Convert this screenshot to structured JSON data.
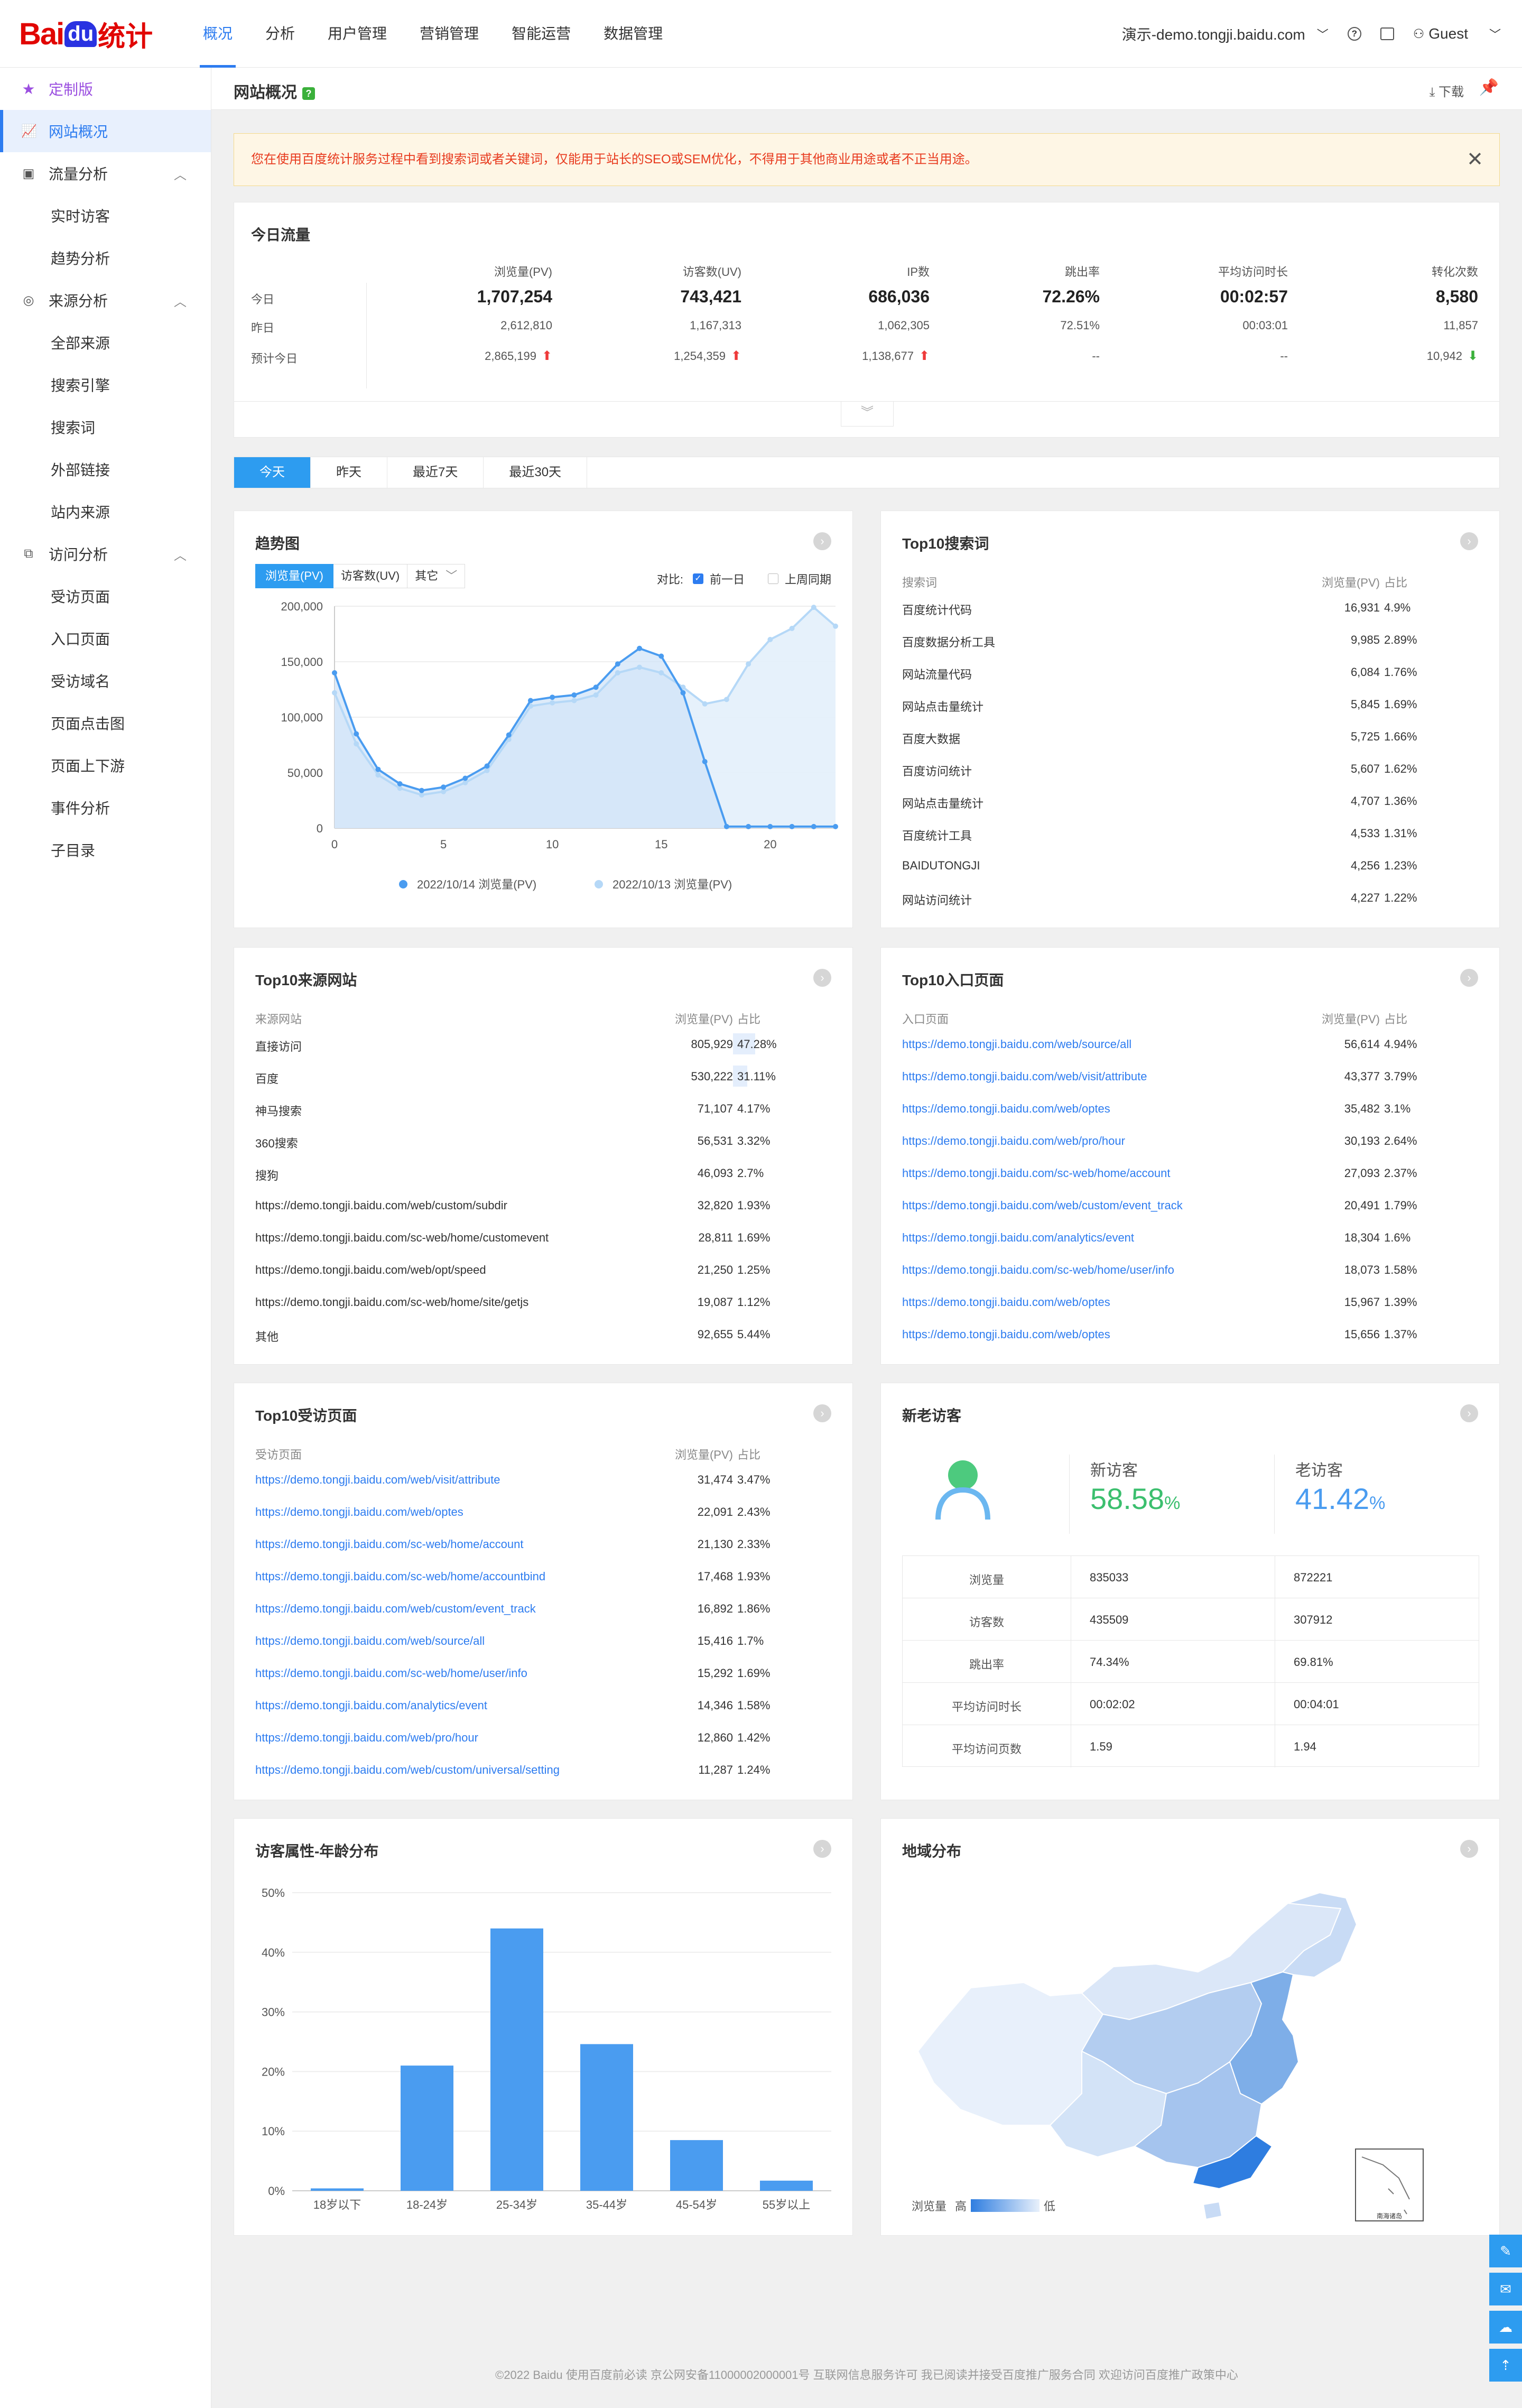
{
  "header": {
    "brand_a": "Bai",
    "brand_b": "du",
    "brand_c": "统计",
    "nav": [
      "概况",
      "分析",
      "用户管理",
      "营销管理",
      "智能运营",
      "数据管理"
    ],
    "site": "演示-demo.tongji.baidu.com",
    "help": "?",
    "user": "Guest"
  },
  "sidebar": {
    "vip": "定制版",
    "overview": "网站概况",
    "groups": [
      {
        "label": "流量分析",
        "items": [
          "实时访客",
          "趋势分析"
        ]
      },
      {
        "label": "来源分析",
        "items": [
          "全部来源",
          "搜索引擎",
          "搜索词",
          "外部链接",
          "站内来源"
        ]
      },
      {
        "label": "访问分析",
        "items": [
          "受访页面",
          "入口页面",
          "受访域名",
          "页面点击图",
          "页面上下游",
          "事件分析",
          "子目录"
        ]
      }
    ]
  },
  "page": {
    "title": "网站概况",
    "help": "?",
    "download": "下载"
  },
  "alert": "您在使用百度统计服务过程中看到搜索词或者关键词，仅能用于站长的SEO或SEM优化，不得用于其他商业用途或者不正当用途。",
  "today": {
    "title": "今日流量",
    "columns": [
      "浏览量(PV)",
      "访客数(UV)",
      "IP数",
      "跳出率",
      "平均访问时长",
      "转化次数"
    ],
    "rows": [
      {
        "label": "今日",
        "values": [
          "1,707,254",
          "743,421",
          "686,036",
          "72.26%",
          "00:02:57",
          "8,580"
        ]
      },
      {
        "label": "昨日",
        "values": [
          "2,612,810",
          "1,167,313",
          "1,062,305",
          "72.51%",
          "00:03:01",
          "11,857"
        ]
      },
      {
        "label": "预计今日",
        "values": [
          "2,865,199",
          "1,254,359",
          "1,138,677",
          "--",
          "--",
          "10,942"
        ],
        "trend": [
          "up",
          "up",
          "up",
          "",
          "",
          "down"
        ]
      }
    ]
  },
  "tabs": [
    "今天",
    "昨天",
    "最近7天",
    "最近30天"
  ],
  "trend": {
    "title": "趋势图",
    "metric_tabs": [
      "浏览量(PV)",
      "访客数(UV)",
      "其它"
    ],
    "compare_label": "对比:",
    "compare_opts": [
      "前一日",
      "上周同期"
    ],
    "chart_data": {
      "type": "line",
      "x": [
        0,
        1,
        2,
        3,
        4,
        5,
        6,
        7,
        8,
        9,
        10,
        11,
        12,
        13,
        14,
        15,
        16,
        17,
        18,
        19,
        20,
        21,
        22,
        23
      ],
      "xticks": [
        0,
        5,
        10,
        15,
        20
      ],
      "ylim": [
        0,
        200000
      ],
      "yticks": [
        "0",
        "50,000",
        "100,000",
        "150,000",
        "200,000"
      ],
      "series": [
        {
          "name": "2022/10/14 浏览量(PV)",
          "color": "#4a9cf0",
          "values": [
            140000,
            85000,
            53000,
            40000,
            34000,
            37000,
            45000,
            56000,
            84000,
            115000,
            118000,
            120000,
            127000,
            148000,
            162000,
            155000,
            122000,
            60000,
            1500,
            1500,
            1500,
            1500,
            1500,
            1500
          ]
        },
        {
          "name": "2022/10/13 浏览量(PV)",
          "color": "#b5d8f7",
          "values": [
            122000,
            76000,
            48000,
            36000,
            30000,
            33000,
            41000,
            52000,
            80000,
            110000,
            113000,
            115000,
            120000,
            140000,
            145000,
            140000,
            127000,
            112000,
            116000,
            148000,
            170000,
            180000,
            199000,
            182000
          ]
        }
      ]
    }
  },
  "search": {
    "title": "Top10搜索词",
    "cols": [
      "搜索词",
      "浏览量(PV)",
      "占比"
    ],
    "rows": [
      [
        "百度统计代码",
        "16,931",
        "4.9%"
      ],
      [
        "百度数据分析工具",
        "9,985",
        "2.89%"
      ],
      [
        "网站流量代码",
        "6,084",
        "1.76%"
      ],
      [
        "网站点击量统计",
        "5,845",
        "1.69%"
      ],
      [
        "百度大数据",
        "5,725",
        "1.66%"
      ],
      [
        "百度访问统计",
        "5,607",
        "1.62%"
      ],
      [
        "网站点击量统计",
        "4,707",
        "1.36%"
      ],
      [
        "百度统计工具",
        "4,533",
        "1.31%"
      ],
      [
        "BAIDUTONGJI",
        "4,256",
        "1.23%"
      ],
      [
        "网站访问统计",
        "4,227",
        "1.22%"
      ]
    ]
  },
  "source": {
    "title": "Top10来源网站",
    "cols": [
      "来源网站",
      "浏览量(PV)",
      "占比"
    ],
    "rows": [
      [
        "直接访问",
        "805,929",
        "47.28%"
      ],
      [
        "百度",
        "530,222",
        "31.11%"
      ],
      [
        "神马搜索",
        "71,107",
        "4.17%"
      ],
      [
        "360搜索",
        "56,531",
        "3.32%"
      ],
      [
        "搜狗",
        "46,093",
        "2.7%"
      ],
      [
        "https://demo.tongji.baidu.com/web/custom/subdir",
        "32,820",
        "1.93%"
      ],
      [
        "https://demo.tongji.baidu.com/sc-web/home/customevent",
        "28,811",
        "1.69%"
      ],
      [
        "https://demo.tongji.baidu.com/web/opt/speed",
        "21,250",
        "1.25%"
      ],
      [
        "https://demo.tongji.baidu.com/sc-web/home/site/getjs",
        "19,087",
        "1.12%"
      ],
      [
        "其他",
        "92,655",
        "5.44%"
      ]
    ]
  },
  "entry": {
    "title": "Top10入口页面",
    "cols": [
      "入口页面",
      "浏览量(PV)",
      "占比"
    ],
    "rows": [
      [
        "https://demo.tongji.baidu.com/web/source/all",
        "56,614",
        "4.94%"
      ],
      [
        "https://demo.tongji.baidu.com/web/visit/attribute",
        "43,377",
        "3.79%"
      ],
      [
        "https://demo.tongji.baidu.com/web/optes",
        "35,482",
        "3.1%"
      ],
      [
        "https://demo.tongji.baidu.com/web/pro/hour",
        "30,193",
        "2.64%"
      ],
      [
        "https://demo.tongji.baidu.com/sc-web/home/account",
        "27,093",
        "2.37%"
      ],
      [
        "https://demo.tongji.baidu.com/web/custom/event_track",
        "20,491",
        "1.79%"
      ],
      [
        "https://demo.tongji.baidu.com/analytics/event",
        "18,304",
        "1.6%"
      ],
      [
        "https://demo.tongji.baidu.com/sc-web/home/user/info",
        "18,073",
        "1.58%"
      ],
      [
        "https://demo.tongji.baidu.com/web/optes",
        "15,967",
        "1.39%"
      ],
      [
        "https://demo.tongji.baidu.com/web/optes",
        "15,656",
        "1.37%"
      ]
    ]
  },
  "visited": {
    "title": "Top10受访页面",
    "cols": [
      "受访页面",
      "浏览量(PV)",
      "占比"
    ],
    "rows": [
      [
        "https://demo.tongji.baidu.com/web/visit/attribute",
        "31,474",
        "3.47%"
      ],
      [
        "https://demo.tongji.baidu.com/web/optes",
        "22,091",
        "2.43%"
      ],
      [
        "https://demo.tongji.baidu.com/sc-web/home/account",
        "21,130",
        "2.33%"
      ],
      [
        "https://demo.tongji.baidu.com/sc-web/home/accountbind",
        "17,468",
        "1.93%"
      ],
      [
        "https://demo.tongji.baidu.com/web/custom/event_track",
        "16,892",
        "1.86%"
      ],
      [
        "https://demo.tongji.baidu.com/web/source/all",
        "15,416",
        "1.7%"
      ],
      [
        "https://demo.tongji.baidu.com/sc-web/home/user/info",
        "15,292",
        "1.69%"
      ],
      [
        "https://demo.tongji.baidu.com/analytics/event",
        "14,346",
        "1.58%"
      ],
      [
        "https://demo.tongji.baidu.com/web/pro/hour",
        "12,860",
        "1.42%"
      ],
      [
        "https://demo.tongji.baidu.com/web/custom/universal/setting",
        "11,287",
        "1.24%"
      ]
    ]
  },
  "visitors": {
    "title": "新老访客",
    "new_label": "新访客",
    "new_value": "58.58",
    "old_label": "老访客",
    "old_value": "41.42",
    "pct": "%",
    "rows": [
      [
        "浏览量",
        "835033",
        "872221"
      ],
      [
        "访客数",
        "435509",
        "307912"
      ],
      [
        "跳出率",
        "74.34%",
        "69.81%"
      ],
      [
        "平均访问时长",
        "00:02:02",
        "00:04:01"
      ],
      [
        "平均访问页数",
        "1.59",
        "1.94"
      ]
    ]
  },
  "age": {
    "title": "访客属性-年龄分布",
    "chart_data": {
      "type": "bar",
      "categories": [
        "18岁以下",
        "18-24岁",
        "25-34岁",
        "35-44岁",
        "45-54岁",
        "55岁以上"
      ],
      "values": [
        0.4,
        21,
        44,
        24.6,
        8.5,
        1.7
      ],
      "ylim": [
        0,
        50
      ],
      "yticks": [
        "0%",
        "10%",
        "20%",
        "30%",
        "40%",
        "50%"
      ],
      "color": "#4a9cf0"
    }
  },
  "region": {
    "title": "地域分布",
    "legend_label": "浏览量",
    "legend_high": "高",
    "legend_low": "低",
    "inset_label": "南海诸岛"
  },
  "footer": "©2022 Baidu 使用百度前必读 京公网安备11000002000001号 互联网信息服务许可 我已阅读并接受百度推广服务合同 欢迎访问百度推广政策中心"
}
